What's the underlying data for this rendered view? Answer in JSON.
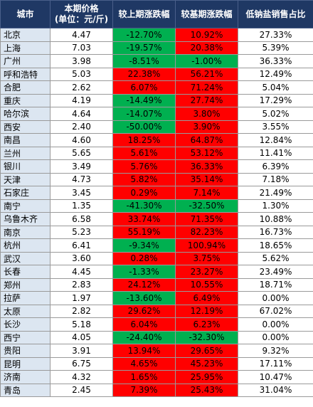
{
  "headers": [
    "城市",
    "本期价格\n(单位：元/斤)",
    "较上期涨跌幅",
    "较基期涨跌幅",
    "低钠盐销售占比"
  ],
  "colors": {
    "header_bg": "#1f3864",
    "city_bg": "#dce6f1",
    "up_red": "#ff0000",
    "down_green": "#00b050"
  },
  "rows": [
    {
      "city": "北京",
      "price": "4.47",
      "prev": "-12.70%",
      "base": "10.92%",
      "ratio": "27.33%"
    },
    {
      "city": "上海",
      "price": "7.03",
      "prev": "-19.57%",
      "base": "20.38%",
      "ratio": "5.39%"
    },
    {
      "city": "广州",
      "price": "3.98",
      "prev": "-8.51%",
      "base": "-1.00%",
      "ratio": "36.33%"
    },
    {
      "city": "呼和浩特",
      "price": "5.03",
      "prev": "22.38%",
      "base": "56.21%",
      "ratio": "12.49%"
    },
    {
      "city": "合肥",
      "price": "2.62",
      "prev": "6.07%",
      "base": "71.24%",
      "ratio": "5.04%"
    },
    {
      "city": "重庆",
      "price": "4.19",
      "prev": "-14.49%",
      "base": "27.74%",
      "ratio": "17.29%"
    },
    {
      "city": "哈尔滨",
      "price": "4.64",
      "prev": "-14.07%",
      "base": "3.80%",
      "ratio": "5.02%"
    },
    {
      "city": "西安",
      "price": "2.40",
      "prev": "-50.00%",
      "base": "3.90%",
      "ratio": "3.55%"
    },
    {
      "city": "南昌",
      "price": "4.60",
      "prev": "18.25%",
      "base": "64.87%",
      "ratio": "12.84%"
    },
    {
      "city": "兰州",
      "price": "5.65",
      "prev": "5.61%",
      "base": "53.12%",
      "ratio": "11.41%"
    },
    {
      "city": "银川",
      "price": "3.49",
      "prev": "5.76%",
      "base": "36.33%",
      "ratio": "6.39%"
    },
    {
      "city": "天津",
      "price": "4.73",
      "prev": "5.82%",
      "base": "35.14%",
      "ratio": "7.18%"
    },
    {
      "city": "石家庄",
      "price": "3.45",
      "prev": "0.29%",
      "base": "7.14%",
      "ratio": "21.49%"
    },
    {
      "city": "南宁",
      "price": "1.35",
      "prev": "-41.30%",
      "base": "-32.50%",
      "ratio": "1.30%"
    },
    {
      "city": "乌鲁木齐",
      "price": "6.58",
      "prev": "33.74%",
      "base": "71.35%",
      "ratio": "10.88%"
    },
    {
      "city": "南京",
      "price": "5.23",
      "prev": "55.19%",
      "base": "82.23%",
      "ratio": "16.73%"
    },
    {
      "city": "杭州",
      "price": "6.41",
      "prev": "-9.34%",
      "base": "100.94%",
      "ratio": "18.65%"
    },
    {
      "city": "武汉",
      "price": "3.60",
      "prev": "0.28%",
      "base": "3.75%",
      "ratio": "5.62%"
    },
    {
      "city": "长春",
      "price": "4.45",
      "prev": "-1.33%",
      "base": "23.27%",
      "ratio": "23.49%"
    },
    {
      "city": "郑州",
      "price": "2.83",
      "prev": "24.12%",
      "base": "10.55%",
      "ratio": "18.71%"
    },
    {
      "city": "拉萨",
      "price": "1.97",
      "prev": "-13.60%",
      "base": "6.49%",
      "ratio": "0.00%"
    },
    {
      "city": "太原",
      "price": "2.82",
      "prev": "29.62%",
      "base": "12.19%",
      "ratio": "67.02%"
    },
    {
      "city": "长沙",
      "price": "5.18",
      "prev": "6.04%",
      "base": "6.23%",
      "ratio": "0.00%"
    },
    {
      "city": "西宁",
      "price": "4.05",
      "prev": "-24.40%",
      "base": "-32.30%",
      "ratio": "0.00%"
    },
    {
      "city": "贵阳",
      "price": "3.91",
      "prev": "13.94%",
      "base": "29.65%",
      "ratio": "9.32%"
    },
    {
      "city": "昆明",
      "price": "6.75",
      "prev": "4.65%",
      "base": "45.23%",
      "ratio": "17.11%"
    },
    {
      "city": "济南",
      "price": "4.32",
      "prev": "1.65%",
      "base": "25.95%",
      "ratio": "10.47%"
    },
    {
      "city": "青岛",
      "price": "2.45",
      "prev": "7.39%",
      "base": "25.43%",
      "ratio": "31.04%"
    }
  ]
}
